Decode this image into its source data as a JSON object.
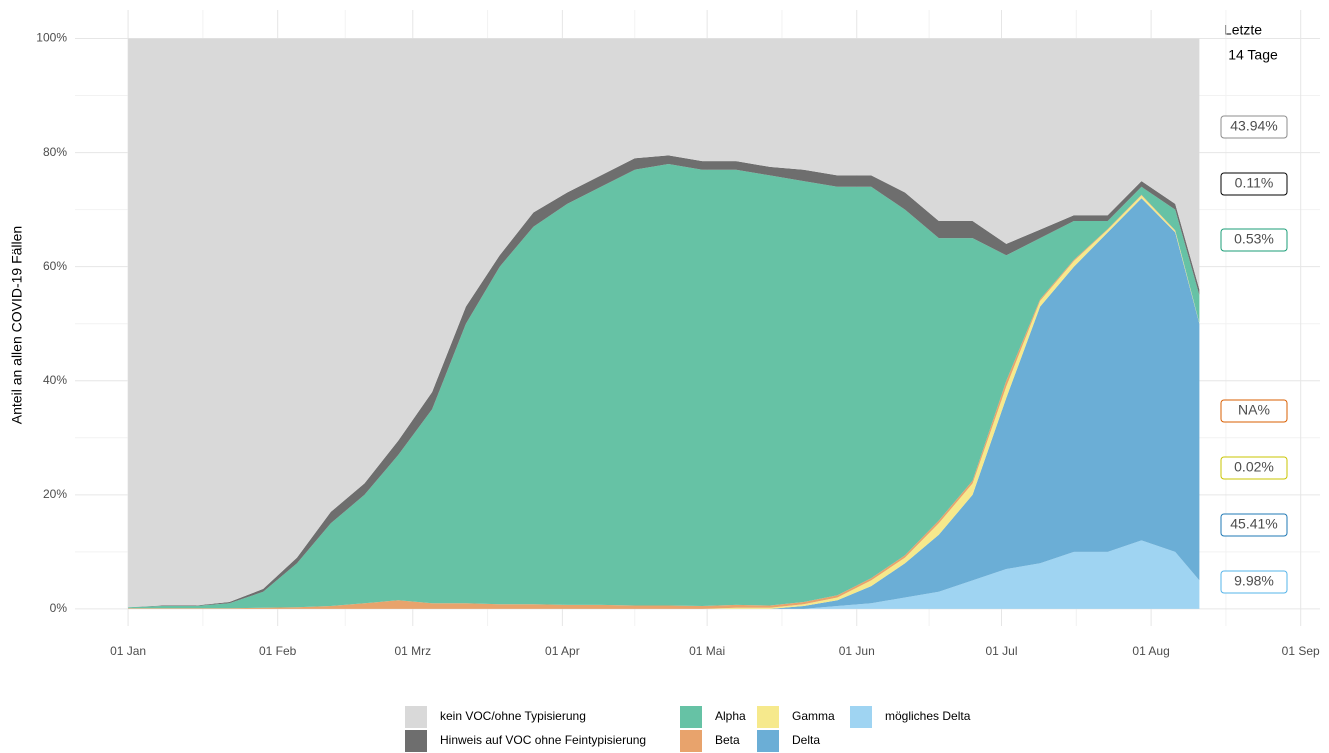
{
  "chart_data": {
    "type": "stacked_area",
    "y_label": "Anteil an allen COVID-19 Fällen",
    "last14_title": [
      "Letzte",
      "14 Tage"
    ],
    "x": [
      0,
      7,
      14,
      21,
      28,
      35,
      42,
      49,
      56,
      63,
      70,
      77,
      84,
      91,
      98,
      105,
      112,
      119,
      126,
      133,
      140,
      147,
      154,
      161,
      168,
      175,
      182,
      189,
      196,
      203,
      210,
      217,
      222
    ],
    "xlim": [
      -11,
      247
    ],
    "xticks": [
      {
        "value": 0,
        "label": "01 Jan"
      },
      {
        "value": 31,
        "label": "01 Feb"
      },
      {
        "value": 59,
        "label": "01 Mrz"
      },
      {
        "value": 90,
        "label": "01 Apr"
      },
      {
        "value": 120,
        "label": "01 Mai"
      },
      {
        "value": 151,
        "label": "01 Jun"
      },
      {
        "value": 181,
        "label": "01 Jul"
      },
      {
        "value": 212,
        "label": "01 Aug"
      },
      {
        "value": 243,
        "label": "01 Sep"
      }
    ],
    "ylim": [
      -3,
      105
    ],
    "yticks": [
      {
        "value": 0,
        "label": "0%"
      },
      {
        "value": 20,
        "label": "20%"
      },
      {
        "value": 40,
        "label": "40%"
      },
      {
        "value": 60,
        "label": "60%"
      },
      {
        "value": 80,
        "label": "80%"
      },
      {
        "value": 100,
        "label": "100%"
      }
    ],
    "grid": true,
    "legend": "bottom",
    "series": [
      {
        "name": "kein VOC/ohne Typisierung",
        "color": "#d9d9d9",
        "label_color": "#8c8c8c",
        "last14": 43.94,
        "last14_label": "43.94%",
        "values": [
          99.7,
          99.4,
          99.4,
          98.8,
          96.5,
          91,
          83,
          78,
          70.5,
          62,
          47,
          38,
          30.5,
          27,
          24,
          21,
          20.5,
          21.5,
          21.5,
          22.5,
          23,
          24,
          24,
          27,
          32,
          32,
          36,
          33.5,
          31,
          31,
          25,
          29,
          44
        ]
      },
      {
        "name": "Hinweis auf VOC ohne Feintypisierung",
        "color": "#6e6e6e",
        "label_color": "#000000",
        "last14": 0.11,
        "last14_label": "0.11%",
        "values": [
          0,
          0.1,
          0.1,
          0.2,
          0.5,
          1,
          2,
          2,
          2.5,
          3,
          3,
          2,
          2.5,
          2,
          2,
          2,
          1.5,
          1.5,
          1.5,
          1.5,
          2,
          2,
          2,
          3,
          3,
          3,
          2,
          1.5,
          1,
          1,
          1,
          1,
          1
        ]
      },
      {
        "name": "Alpha",
        "color": "#66c2a5",
        "label_color": "#1b9e77",
        "last14": 0.53,
        "last14_label": "0.53%",
        "values": [
          0.2,
          0.4,
          0.4,
          0.9,
          2.8,
          7.7,
          14.5,
          19,
          25.5,
          34,
          49,
          59.2,
          66.2,
          70.3,
          73.3,
          76.4,
          77.4,
          76.5,
          76.3,
          75.4,
          73.8,
          71.6,
          68.6,
          60.6,
          49.5,
          42.5,
          22,
          10.7,
          6.8,
          1.4,
          1.4,
          3.6,
          4.9
        ]
      },
      {
        "name": "Beta",
        "color": "#e8a36c",
        "label_color": "#d95f02",
        "last14": null,
        "last14_label": "NA%",
        "values": [
          0.1,
          0.1,
          0.1,
          0.1,
          0.2,
          0.3,
          0.5,
          1,
          1.5,
          1,
          1,
          0.8,
          0.8,
          0.7,
          0.7,
          0.6,
          0.6,
          0.5,
          0.5,
          0.4,
          0.4,
          0.4,
          0.4,
          0.4,
          0.5,
          0.5,
          1,
          0.3,
          0.2,
          0.1,
          0.1,
          0.1,
          0
        ]
      },
      {
        "name": "Gamma",
        "color": "#f6e98c",
        "label_color": "#c9c400",
        "last14": 0.02,
        "last14_label": "0.02%",
        "values": [
          0,
          0,
          0,
          0,
          0,
          0,
          0,
          0,
          0,
          0,
          0,
          0,
          0,
          0,
          0,
          0,
          0,
          0,
          0.2,
          0.2,
          0.3,
          0.5,
          1,
          1,
          2,
          2,
          2,
          1,
          1,
          0.5,
          0.5,
          0.3,
          0.1
        ]
      },
      {
        "name": "Delta",
        "color": "#6baed6",
        "label_color": "#1f78b4",
        "last14": 45.41,
        "last14_label": "45.41%",
        "values": [
          0,
          0,
          0,
          0,
          0,
          0,
          0,
          0,
          0,
          0,
          0,
          0,
          0,
          0,
          0,
          0,
          0,
          0,
          0,
          0,
          0.5,
          1,
          3,
          6,
          10,
          15,
          30,
          45,
          50,
          56,
          60,
          56,
          45
        ]
      },
      {
        "name": "mögliches Delta",
        "color": "#9fd4f2",
        "label_color": "#56b4e9",
        "last14": 9.98,
        "last14_label": "9.98%",
        "values": [
          0,
          0,
          0,
          0,
          0,
          0,
          0,
          0,
          0,
          0,
          0,
          0,
          0,
          0,
          0,
          0,
          0,
          0,
          0,
          0,
          0,
          0.5,
          1,
          2,
          3,
          5,
          7,
          8,
          10,
          10,
          12,
          10,
          5
        ]
      }
    ]
  }
}
